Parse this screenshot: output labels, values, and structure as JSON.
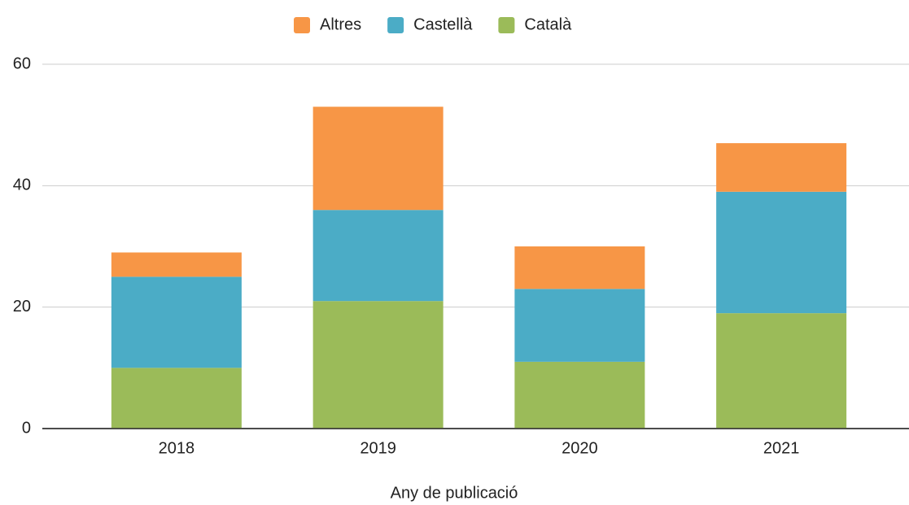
{
  "chart_data": {
    "type": "stacked_bar",
    "x_label": "Any de publicació",
    "categories": [
      "2018",
      "2019",
      "2020",
      "2021"
    ],
    "series": [
      {
        "name": "Altres",
        "color": "#f79646",
        "values": [
          4,
          17,
          7,
          8
        ]
      },
      {
        "name": "Castellà",
        "color": "#4bacc6",
        "values": [
          15,
          15,
          12,
          20
        ]
      },
      {
        "name": "Català",
        "color": "#9bbb59",
        "values": [
          10,
          21,
          11,
          19
        ]
      }
    ],
    "ylim": [
      0,
      60
    ],
    "yticks": [
      0,
      20,
      40,
      60
    ],
    "grid": true,
    "legend": "top"
  }
}
